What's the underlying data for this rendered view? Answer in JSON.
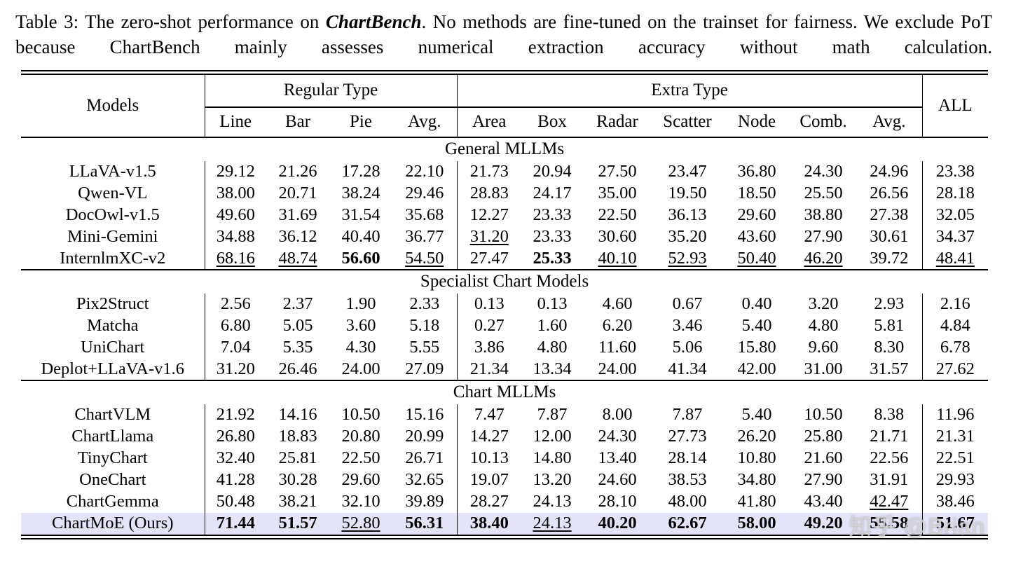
{
  "caption": {
    "part1": "Table 3:  The zero-shot performance on ",
    "highlight": "ChartBench",
    "part2": ".  No methods are fine-tuned on the trainset for fairness. We exclude PoT because ChartBench mainly assesses numerical extraction accuracy without math calculation."
  },
  "watermark": "知乎 @Brian",
  "colors": {
    "highlight_row": "#e4e4f8",
    "rule": "#000000"
  },
  "table": {
    "headers": {
      "models": "Models",
      "regular": "Regular Type",
      "extra": "Extra Type",
      "all": "ALL"
    },
    "sub_headers": [
      "Line",
      "Bar",
      "Pie",
      "Avg.",
      "Area",
      "Box",
      "Radar",
      "Scatter",
      "Node",
      "Comb.",
      "Avg."
    ],
    "sections": [
      {
        "title": "General MLLMs",
        "rows": [
          {
            "model": "LLaVA-v1.5",
            "values": [
              "29.12",
              "21.26",
              "17.28",
              "22.10",
              "21.73",
              "20.94",
              "27.50",
              "23.47",
              "36.80",
              "24.30",
              "24.96",
              "23.38"
            ],
            "styles": [
              "",
              "",
              "",
              "",
              "",
              "",
              "",
              "",
              "",
              "",
              "",
              ""
            ]
          },
          {
            "model": "Qwen-VL",
            "values": [
              "38.00",
              "20.71",
              "38.24",
              "29.46",
              "28.83",
              "24.17",
              "35.00",
              "19.50",
              "18.50",
              "25.50",
              "26.56",
              "28.18"
            ],
            "styles": [
              "",
              "",
              "",
              "",
              "",
              "",
              "",
              "",
              "",
              "",
              "",
              ""
            ]
          },
          {
            "model": "DocOwl-v1.5",
            "values": [
              "49.60",
              "31.69",
              "31.54",
              "35.68",
              "12.27",
              "23.33",
              "22.50",
              "36.13",
              "29.60",
              "38.80",
              "27.38",
              "32.05"
            ],
            "styles": [
              "",
              "",
              "",
              "",
              "",
              "",
              "",
              "",
              "",
              "",
              "",
              ""
            ]
          },
          {
            "model": "Mini-Gemini",
            "values": [
              "34.88",
              "36.12",
              "40.40",
              "36.77",
              "31.20",
              "23.33",
              "30.60",
              "35.20",
              "43.60",
              "27.90",
              "30.61",
              "34.37"
            ],
            "styles": [
              "",
              "",
              "",
              "",
              "u",
              "",
              "",
              "",
              "",
              "",
              "",
              ""
            ]
          },
          {
            "model": "InternlmXC-v2",
            "values": [
              "68.16",
              "48.74",
              "56.60",
              "54.50",
              "27.47",
              "25.33",
              "40.10",
              "52.93",
              "50.40",
              "46.20",
              "39.72",
              "48.41"
            ],
            "styles": [
              "u",
              "u",
              "b",
              "u",
              "",
              "b",
              "u",
              "u",
              "u",
              "u",
              "",
              "u"
            ]
          }
        ]
      },
      {
        "title": "Specialist Chart Models",
        "rows": [
          {
            "model": "Pix2Struct",
            "values": [
              "2.56",
              "2.37",
              "1.90",
              "2.33",
              "0.13",
              "0.13",
              "4.60",
              "0.67",
              "0.40",
              "3.20",
              "2.93",
              "2.16"
            ],
            "styles": [
              "",
              "",
              "",
              "",
              "",
              "",
              "",
              "",
              "",
              "",
              "",
              ""
            ]
          },
          {
            "model": "Matcha",
            "values": [
              "6.80",
              "5.05",
              "3.60",
              "5.18",
              "0.27",
              "1.60",
              "6.20",
              "3.46",
              "5.40",
              "4.80",
              "5.81",
              "4.84"
            ],
            "styles": [
              "",
              "",
              "",
              "",
              "",
              "",
              "",
              "",
              "",
              "",
              "",
              ""
            ]
          },
          {
            "model": "UniChart",
            "values": [
              "7.04",
              "5.35",
              "4.30",
              "5.55",
              "3.86",
              "4.80",
              "11.60",
              "5.06",
              "15.80",
              "9.60",
              "8.30",
              "6.78"
            ],
            "styles": [
              "",
              "",
              "",
              "",
              "",
              "",
              "",
              "",
              "",
              "",
              "",
              ""
            ]
          },
          {
            "model": "Deplot+LLaVA-v1.6",
            "values": [
              "31.20",
              "26.46",
              "24.00",
              "27.09",
              "21.34",
              "13.34",
              "24.00",
              "41.34",
              "42.00",
              "31.00",
              "31.57",
              "27.62"
            ],
            "styles": [
              "",
              "",
              "",
              "",
              "",
              "",
              "",
              "",
              "",
              "",
              "",
              ""
            ]
          }
        ]
      },
      {
        "title": "Chart MLLMs",
        "rows": [
          {
            "model": "ChartVLM",
            "values": [
              "21.92",
              "14.16",
              "10.50",
              "15.16",
              "7.47",
              "7.87",
              "8.00",
              "7.87",
              "5.40",
              "10.50",
              "8.38",
              "11.96"
            ],
            "styles": [
              "",
              "",
              "",
              "",
              "",
              "",
              "",
              "",
              "",
              "",
              "",
              ""
            ]
          },
          {
            "model": "ChartLlama",
            "values": [
              "26.80",
              "18.83",
              "20.80",
              "20.99",
              "14.27",
              "12.00",
              "24.30",
              "27.73",
              "26.20",
              "25.80",
              "21.71",
              "21.31"
            ],
            "styles": [
              "",
              "",
              "",
              "",
              "",
              "",
              "",
              "",
              "",
              "",
              "",
              ""
            ]
          },
          {
            "model": "TinyChart",
            "values": [
              "32.40",
              "25.81",
              "22.50",
              "26.71",
              "10.13",
              "14.80",
              "13.40",
              "28.14",
              "10.80",
              "21.60",
              "22.56",
              "22.51"
            ],
            "styles": [
              "",
              "",
              "",
              "",
              "",
              "",
              "",
              "",
              "",
              "",
              "",
              ""
            ]
          },
          {
            "model": "OneChart",
            "values": [
              "41.28",
              "30.28",
              "29.60",
              "32.65",
              "19.07",
              "13.20",
              "24.60",
              "38.53",
              "34.80",
              "27.90",
              "31.91",
              "29.93"
            ],
            "styles": [
              "",
              "",
              "",
              "",
              "",
              "",
              "",
              "",
              "",
              "",
              "",
              ""
            ]
          },
          {
            "model": "ChartGemma",
            "values": [
              "50.48",
              "38.21",
              "32.10",
              "39.89",
              "28.27",
              "24.13",
              "28.10",
              "48.00",
              "41.80",
              "43.40",
              "42.47",
              "38.46"
            ],
            "styles": [
              "",
              "",
              "",
              "",
              "",
              "",
              "",
              "",
              "",
              "",
              "u",
              ""
            ]
          },
          {
            "model": "ChartMoE (Ours)",
            "highlight": true,
            "values": [
              "71.44",
              "51.57",
              "52.80",
              "56.31",
              "38.40",
              "24.13",
              "40.20",
              "62.67",
              "58.00",
              "49.20",
              "55.58",
              "51.67"
            ],
            "styles": [
              "b",
              "b",
              "u",
              "b",
              "b",
              "u",
              "b",
              "b",
              "b",
              "b",
              "b",
              "b"
            ]
          }
        ]
      }
    ]
  }
}
